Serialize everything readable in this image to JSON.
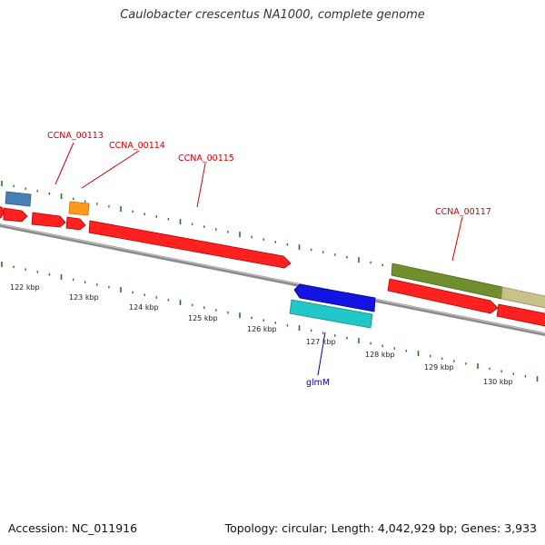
{
  "title": "Caulobacter crescentus NA1000, complete genome",
  "footer": {
    "accession": "Accession: NC_011916",
    "summary": "Topology: circular; Length: 4,042,929 bp; Genes: 3,933"
  },
  "colors": {
    "backbone": "#8a8a8a",
    "tick": "#1f7a1f",
    "cds": "#ff2020",
    "feature_blue": "#4a7fb5",
    "feature_orange": "#ff9a1a",
    "feature_olive": "#6f8f2f",
    "feature_khaki": "#c7c28a",
    "minus_blue": "#1414e0",
    "minus_cyan": "#22c8c8",
    "label_red": "#cc0000",
    "label_blue": "#0000aa"
  },
  "genome_map": {
    "kbp_labels": [
      "122 kbp",
      "123 kbp",
      "124 kbp",
      "125 kbp",
      "126 kbp",
      "127 kbp",
      "128 kbp",
      "129 kbp",
      "130 kbp"
    ],
    "gene_labels": [
      "CCNA_00113",
      "CCNA_00114",
      "CCNA_00115",
      "CCNA_00117",
      "glmM"
    ]
  }
}
